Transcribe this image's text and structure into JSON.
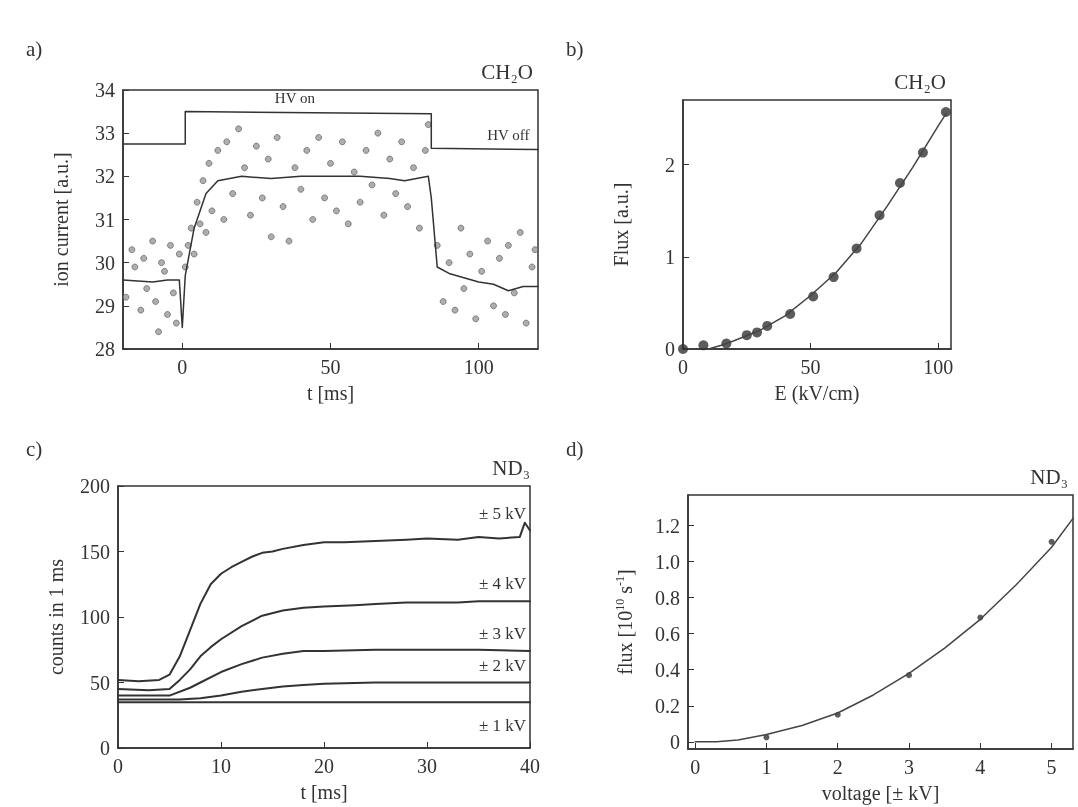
{
  "chart_data": [
    {
      "type": "scatter",
      "title": "CH₂O",
      "xlabel": "t [ms]",
      "ylabel": "ion current [a.u.]",
      "xlim": [
        -20,
        120
      ],
      "ylim": [
        28,
        34
      ],
      "xticks": [
        0,
        50,
        100
      ],
      "yticks": [
        28,
        29,
        30,
        31,
        32,
        33,
        34
      ],
      "grid": false,
      "annotations": [
        "a)",
        {
          "text": "HV on",
          "x": 38,
          "y": 33.5
        },
        {
          "text": "HV off",
          "x": 110,
          "y": 32.65
        }
      ],
      "series": [
        {
          "marker": "circle",
          "color": "#9a9a9a",
          "x": [
            -19,
            -17,
            -16,
            -14,
            -13,
            -12,
            -10,
            -9,
            -8,
            -7,
            -6,
            -5,
            -4,
            -3,
            -2,
            -1,
            1,
            2,
            3,
            4,
            5,
            6,
            7,
            8,
            9,
            10,
            12,
            14,
            15,
            17,
            19,
            21,
            23,
            25,
            27,
            29,
            30,
            32,
            34,
            36,
            38,
            40,
            42,
            44,
            46,
            48,
            50,
            52,
            54,
            56,
            58,
            60,
            62,
            64,
            66,
            68,
            70,
            72,
            74,
            76,
            78,
            80,
            82,
            83,
            86,
            88,
            90,
            92,
            94,
            95,
            97,
            99,
            101,
            103,
            105,
            107,
            109,
            110,
            112,
            114,
            116,
            118,
            119
          ],
          "values": [
            29.2,
            30.3,
            29.9,
            28.9,
            30.1,
            29.4,
            30.5,
            29.1,
            28.4,
            30.0,
            29.8,
            28.8,
            30.4,
            29.3,
            28.6,
            30.2,
            29.9,
            30.4,
            30.8,
            30.2,
            31.4,
            30.9,
            31.9,
            30.7,
            32.3,
            31.2,
            32.6,
            31.0,
            32.8,
            31.6,
            33.1,
            32.2,
            31.1,
            32.7,
            31.5,
            32.4,
            30.6,
            32.9,
            31.3,
            30.5,
            32.2,
            31.7,
            32.6,
            31.0,
            32.9,
            31.5,
            32.3,
            31.2,
            32.8,
            30.9,
            32.1,
            31.4,
            32.6,
            31.8,
            33.0,
            31.1,
            32.4,
            31.6,
            32.8,
            31.3,
            32.2,
            30.8,
            32.6,
            33.2,
            30.4,
            29.1,
            30.0,
            28.9,
            30.8,
            29.4,
            30.2,
            28.7,
            29.8,
            30.5,
            29.0,
            30.1,
            28.8,
            30.4,
            29.3,
            30.7,
            28.6,
            29.9,
            30.3
          ]
        },
        {
          "type": "line",
          "color": "#333333",
          "x": [
            -20,
            -10,
            -5,
            -1,
            0,
            1,
            4,
            8,
            12,
            20,
            30,
            40,
            50,
            60,
            70,
            75,
            83,
            84,
            86,
            90,
            95,
            100,
            105,
            110,
            115,
            120
          ],
          "values": [
            29.6,
            29.55,
            29.6,
            29.6,
            28.5,
            29.7,
            30.8,
            31.6,
            31.9,
            32.0,
            31.95,
            32.0,
            32.0,
            32.0,
            31.95,
            31.9,
            32.0,
            31.5,
            29.9,
            29.75,
            29.65,
            29.55,
            29.5,
            29.35,
            29.45,
            29.45
          ]
        },
        {
          "type": "line",
          "color": "#333333",
          "x": [
            -20,
            1,
            1,
            84,
            84,
            120
          ],
          "values": [
            32.75,
            32.75,
            33.5,
            33.45,
            32.65,
            32.62
          ]
        }
      ]
    },
    {
      "type": "scatter",
      "title": "CH₂O",
      "xlabel": "E (kV/cm)",
      "ylabel": "Flux [a.u.]",
      "xlim": [
        0,
        105
      ],
      "ylim": [
        0,
        2.7
      ],
      "xticks": [
        0,
        50,
        100
      ],
      "yticks": [
        0,
        1,
        2
      ],
      "grid": false,
      "annotations": [
        "b)"
      ],
      "series": [
        {
          "marker": "circle",
          "color": "#333333",
          "x": [
            0,
            8,
            17,
            25,
            29,
            33,
            42,
            51,
            59,
            68,
            77,
            85,
            94,
            103
          ],
          "values": [
            0,
            0.04,
            0.06,
            0.15,
            0.18,
            0.25,
            0.38,
            0.57,
            0.78,
            1.09,
            1.45,
            1.8,
            2.13,
            2.57
          ]
        },
        {
          "type": "line",
          "color": "#444444",
          "x": [
            10,
            15,
            20,
            30,
            40,
            50,
            60,
            70,
            80,
            90,
            100,
            103
          ],
          "values": [
            0,
            0.04,
            0.09,
            0.2,
            0.36,
            0.58,
            0.83,
            1.15,
            1.55,
            1.97,
            2.42,
            2.55
          ]
        }
      ]
    },
    {
      "type": "line",
      "title": "ND₃",
      "xlabel": "t [ms]",
      "ylabel": "counts in 1 ms",
      "xlim": [
        0,
        40
      ],
      "ylim": [
        0,
        200
      ],
      "xticks": [
        0,
        10,
        20,
        30,
        40
      ],
      "yticks": [
        0,
        50,
        100,
        150,
        200
      ],
      "grid": false,
      "annotations": [
        "c)"
      ],
      "series": [
        {
          "name": "± 5 kV",
          "color": "#333333",
          "x": [
            0,
            2,
            4,
            5,
            6,
            7,
            8,
            9,
            10,
            11,
            12,
            13,
            14,
            15,
            16,
            18,
            20,
            22,
            25,
            28,
            30,
            33,
            35,
            37,
            39,
            39.5,
            40
          ],
          "values": [
            52,
            51,
            52,
            56,
            70,
            90,
            110,
            125,
            133,
            138,
            142,
            146,
            149,
            150,
            152,
            155,
            157,
            157,
            158,
            159,
            160,
            159,
            161,
            160,
            161,
            172,
            166
          ]
        },
        {
          "name": "± 4 kV",
          "color": "#333333",
          "x": [
            0,
            3,
            5,
            6,
            7,
            8,
            9,
            10,
            12,
            14,
            16,
            18,
            20,
            23,
            25,
            28,
            30,
            33,
            35,
            38,
            40
          ],
          "values": [
            45,
            44,
            45,
            52,
            60,
            70,
            77,
            83,
            93,
            101,
            105,
            107,
            108,
            109,
            110,
            111,
            111,
            111,
            112,
            112,
            112
          ]
        },
        {
          "name": "± 3 kV",
          "color": "#333333",
          "x": [
            0,
            3,
            5,
            7,
            8,
            10,
            12,
            14,
            16,
            18,
            20,
            25,
            30,
            35,
            40
          ],
          "values": [
            40,
            40,
            40,
            46,
            50,
            58,
            64,
            69,
            72,
            74,
            74,
            75,
            75,
            75,
            74
          ]
        },
        {
          "name": "± 2 kV",
          "color": "#333333",
          "x": [
            0,
            3,
            6,
            8,
            10,
            12,
            14,
            16,
            18,
            20,
            25,
            30,
            35,
            40
          ],
          "values": [
            37,
            37,
            37,
            38,
            40,
            43,
            45,
            47,
            48,
            49,
            50,
            50,
            50,
            50
          ]
        },
        {
          "name": "± 1 kV",
          "color": "#333333",
          "x": [
            0,
            5,
            10,
            15,
            20,
            25,
            30,
            35,
            40
          ],
          "values": [
            35,
            35,
            35,
            35,
            35,
            35,
            35,
            35,
            35
          ]
        }
      ]
    },
    {
      "type": "scatter",
      "title": "ND₃",
      "xlabel": "voltage [± kV]",
      "ylabel": "flux [10$^{10}$ s$^{-1}$]",
      "xlim": [
        -0.1,
        5.3
      ],
      "ylim": [
        -0.04,
        1.37
      ],
      "xticks": [
        0,
        1,
        2,
        3,
        4,
        5
      ],
      "yticks": [
        0,
        0.2,
        0.4,
        0.6,
        0.8,
        {
          "value": 1,
          "label": "1.0"
        },
        1.2
      ],
      "grid": false,
      "annotations": [
        "d)"
      ],
      "series": [
        {
          "marker": "circle",
          "color": "#333333",
          "x": [
            1,
            2,
            3,
            4,
            5
          ],
          "values": [
            0.025,
            0.15,
            0.37,
            0.69,
            1.11
          ]
        },
        {
          "type": "line",
          "color": "#444444",
          "x": [
            0,
            0.3,
            0.6,
            1,
            1.5,
            2,
            2.5,
            3,
            3.5,
            4,
            4.5,
            5,
            5.3
          ],
          "values": [
            0,
            0,
            0.01,
            0.04,
            0.09,
            0.16,
            0.26,
            0.38,
            0.52,
            0.68,
            0.87,
            1.08,
            1.24
          ]
        }
      ]
    }
  ]
}
